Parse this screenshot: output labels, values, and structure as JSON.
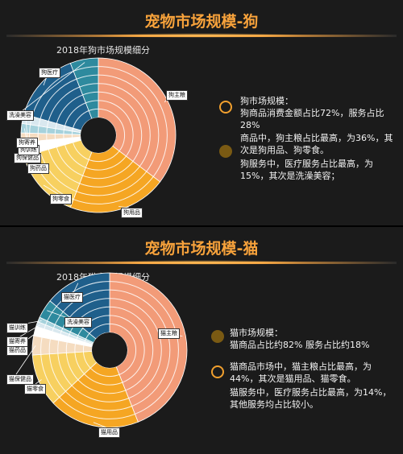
{
  "dog": {
    "title": "宠物市场规模-狗",
    "chart_title": "2018年狗市场规模细分",
    "notes": {
      "n1": "狗市场规模：",
      "n2": "狗商品消费金额占比72%，服务占比28%",
      "n3": "商品中，狗主粮占比最高，为36%，其次是狗用品、狗零食。",
      "n4": "狗服务中，医疗服务占比最高，为15%，其次是洗澡美容；"
    }
  },
  "cat": {
    "title": "宠物市场规模-猫",
    "chart_title": "2018年猫市场规模细分",
    "notes": {
      "n1": "猫市场规模：",
      "n2": "猫商品占比约82% 服务占比约18%",
      "n3": "猫商品市场中，猫主粮占比最高，为44%，其次是猫用品、猫零食。",
      "n4": "猫服务中，医疗服务占比最高，为14%，其他服务均占比较小。"
    }
  },
  "colors": {
    "food": "#f29b78",
    "supplies": "#f5a623",
    "snack": "#f7d060",
    "medical": "#1f5f8b",
    "grooming": "#2e8a9e",
    "training": "#a6d2dc",
    "boarding": "#d9e8ef",
    "care": "#f5dcc0",
    "medicine": "#ffffff",
    "other": "#555555",
    "accent": "#f7a23b"
  },
  "chart_data": [
    {
      "type": "pie",
      "title": "2018年狗市场规模细分",
      "series": [
        {
          "values": [
            36,
            21,
            15,
            3,
            2,
            2,
            2,
            15,
            6
          ]
        }
      ],
      "categories": [
        "狗主粮",
        "狗用品",
        "狗零食",
        "狗药品",
        "狗保健品",
        "狗训练",
        "狗寄养",
        "狗医疗",
        "洗澡美容"
      ],
      "summary": {
        "goods_share": 72,
        "service_share": 28
      }
    },
    {
      "type": "pie",
      "title": "2018年猫市场规模细分",
      "series": [
        {
          "values": [
            44,
            19,
            11,
            4,
            2,
            1,
            1,
            4,
            14
          ]
        }
      ],
      "categories": [
        "猫主粮",
        "猫用品",
        "猫零食",
        "猫保健品",
        "猫药品",
        "猫寄养",
        "猫训练",
        "洗澡美容",
        "猫医疗"
      ],
      "summary": {
        "goods_share": 82,
        "service_share": 18
      }
    }
  ]
}
